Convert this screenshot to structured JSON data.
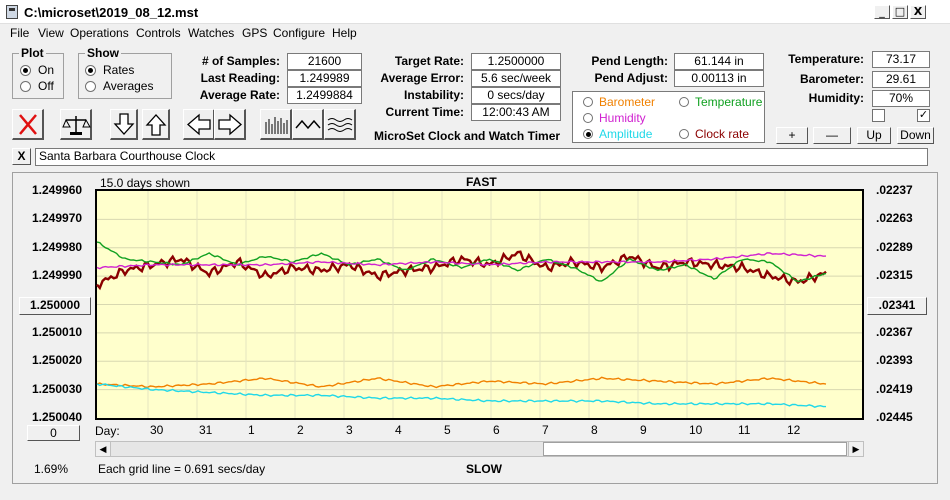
{
  "window": {
    "title": "C:\\microset\\2019_08_12.mst",
    "minimize": "_",
    "maximize": "□",
    "close": "X"
  },
  "menu": [
    "File",
    "View",
    "Operations",
    "Controls",
    "Watches",
    "GPS",
    "Configure",
    "Help"
  ],
  "plot_group": {
    "title": "Plot",
    "options": [
      "On",
      "Off"
    ],
    "selected": "On"
  },
  "show_group": {
    "title": "Show",
    "options": [
      "Rates",
      "Averages"
    ],
    "selected": "Rates"
  },
  "stats_left": [
    {
      "label": "# of Samples:",
      "value": "21600"
    },
    {
      "label": "Last Reading:",
      "value": "1.249989"
    },
    {
      "label": "Average Rate:",
      "value": "1.2499884"
    }
  ],
  "stats_mid": [
    {
      "label": "Target Rate:",
      "value": "1.2500000"
    },
    {
      "label": "Average Error:",
      "value": "5.6 sec/week"
    },
    {
      "label": "Instability:",
      "value": "0 secs/day"
    },
    {
      "label": "Current Time:",
      "value": "12:00:43 AM"
    }
  ],
  "app_caption": "MicroSet Clock and Watch Timer",
  "pend": [
    {
      "label": "Pend Length:",
      "value": "61.144 in"
    },
    {
      "label": "Pend Adjust:",
      "value": "0.00113 in"
    }
  ],
  "env": [
    {
      "label": "Temperature:",
      "value": "73.17"
    },
    {
      "label": "Barometer:",
      "value": "29.61"
    },
    {
      "label": "Humidity:",
      "value": "70%"
    }
  ],
  "env_checks": {
    "left": false,
    "right": true
  },
  "legend": [
    {
      "label": "Barometer",
      "color": "#f08000",
      "selected": false
    },
    {
      "label": "Temperature",
      "color": "#10a020",
      "selected": false
    },
    {
      "label": "Humidity",
      "color": "#d020d0",
      "selected": false
    },
    {
      "label": "Amplitude",
      "color": "#20d8e8",
      "selected": true
    },
    {
      "label": "Clock rate",
      "color": "#8b0000",
      "selected": false
    }
  ],
  "scale_buttons": [
    "+",
    "—",
    "Up",
    "Down"
  ],
  "toolbar_icons": [
    "clear-x-icon",
    "balance-scale-icon",
    "arrow-down-icon",
    "arrow-up-icon",
    "arrow-left-icon",
    "arrow-right-icon",
    "bar-chart-icon",
    "wave-icon",
    "multi-wave-icon"
  ],
  "description_close": "X",
  "description": "Santa Barbara Courthouse Clock",
  "graph": {
    "days_shown": "15.0 days shown",
    "top_label": "FAST",
    "bottom_label": "SLOW",
    "grid_note": "Each grid line = 0.691 secs/day",
    "percent": "1.69%",
    "center_left_button": "1.250000",
    "center_right_button": ".02341",
    "zero_button": "0",
    "day_label": "Day:"
  },
  "chart_data": {
    "type": "line",
    "x_ticks": [
      "30",
      "31",
      "1",
      "2",
      "3",
      "4",
      "5",
      "6",
      "7",
      "8",
      "9",
      "10",
      "11",
      "12"
    ],
    "y_left_ticks": [
      "1.249960",
      "1.249970",
      "1.249980",
      "1.249990",
      "1.250000",
      "1.250010",
      "1.250020",
      "1.250030",
      "1.250040"
    ],
    "y_right_ticks": [
      ".02237",
      ".02263",
      ".02289",
      ".02315",
      ".02341",
      ".02367",
      ".02393",
      ".02419",
      ".02445"
    ],
    "ylim_left": [
      1.24996,
      1.25004
    ],
    "ylim_right": [
      0.02237,
      0.02445
    ],
    "y_axis_inverted": true,
    "background": "#ffffcc",
    "grid": true,
    "series": [
      {
        "name": "Clock rate",
        "color": "#8b0000",
        "points": [
          [
            0,
            1.249993
          ],
          [
            0.5,
            1.249988
          ],
          [
            1,
            1.249986
          ],
          [
            1.5,
            1.249984
          ],
          [
            2,
            1.249989
          ],
          [
            2.5,
            1.249985
          ],
          [
            3,
            1.24999
          ],
          [
            3.5,
            1.249987
          ],
          [
            4,
            1.249988
          ],
          [
            4.5,
            1.249986
          ],
          [
            5,
            1.24999
          ],
          [
            5.5,
            1.249988
          ],
          [
            6,
            1.249987
          ],
          [
            6.5,
            1.249984
          ],
          [
            7,
            1.249986
          ],
          [
            7.5,
            1.249982
          ],
          [
            8,
            1.249987
          ],
          [
            8.5,
            1.249985
          ],
          [
            9,
            1.249987
          ],
          [
            9.5,
            1.249983
          ],
          [
            10,
            1.249987
          ],
          [
            10.5,
            1.249985
          ],
          [
            11,
            1.249986
          ],
          [
            11.5,
            1.249987
          ],
          [
            12,
            1.24999
          ],
          [
            12.5,
            1.249992
          ],
          [
            13,
            1.249989
          ]
        ]
      },
      {
        "name": "Temperature",
        "color": "#10a020",
        "points": [
          [
            0,
            1.249978
          ],
          [
            0.5,
            1.249984
          ],
          [
            1,
            1.249985
          ],
          [
            1.5,
            1.249986
          ],
          [
            2,
            1.249982
          ],
          [
            2.5,
            1.249986
          ],
          [
            3,
            1.249983
          ],
          [
            3.5,
            1.249985
          ],
          [
            4,
            1.249982
          ],
          [
            4.5,
            1.249986
          ],
          [
            5,
            1.249984
          ],
          [
            5.5,
            1.249988
          ],
          [
            6,
            1.249984
          ],
          [
            6.5,
            1.249987
          ],
          [
            7,
            1.249984
          ],
          [
            7.5,
            1.249988
          ],
          [
            8,
            1.249984
          ],
          [
            8.5,
            1.249987
          ],
          [
            9,
            1.249992
          ],
          [
            9.5,
            1.249984
          ],
          [
            10,
            1.249988
          ],
          [
            10.5,
            1.249986
          ],
          [
            11,
            1.249991
          ],
          [
            11.5,
            1.249984
          ],
          [
            12,
            1.249985
          ],
          [
            12.5,
            1.249992
          ],
          [
            13,
            1.249989
          ]
        ]
      },
      {
        "name": "Humidity",
        "color": "#d020d0",
        "points": [
          [
            0,
            1.249987
          ],
          [
            1,
            1.249986
          ],
          [
            2,
            1.249986
          ],
          [
            3,
            1.249986
          ],
          [
            4,
            1.249985
          ],
          [
            5,
            1.249986
          ],
          [
            6,
            1.249985
          ],
          [
            7,
            1.249986
          ],
          [
            8,
            1.249985
          ],
          [
            9,
            1.249985
          ],
          [
            10,
            1.249985
          ],
          [
            11,
            1.249984
          ],
          [
            12,
            1.249982
          ],
          [
            13,
            1.249983
          ]
        ]
      },
      {
        "name": "Barometer",
        "color": "#f08000",
        "points": [
          [
            0,
            1.250028
          ],
          [
            1,
            1.250029
          ],
          [
            2,
            1.250028
          ],
          [
            3,
            1.250026
          ],
          [
            4,
            1.250029
          ],
          [
            5,
            1.250026
          ],
          [
            6,
            1.250029
          ],
          [
            7,
            1.250027
          ],
          [
            8,
            1.250028
          ],
          [
            9,
            1.250026
          ],
          [
            10,
            1.250027
          ],
          [
            11,
            1.250028
          ],
          [
            12,
            1.250026
          ],
          [
            13,
            1.250028
          ]
        ]
      },
      {
        "name": "Amplitude",
        "color": "#20d8e8",
        "points": [
          [
            0,
            1.250028
          ],
          [
            1,
            1.25003
          ],
          [
            2,
            1.250031
          ],
          [
            3,
            1.250032
          ],
          [
            4,
            1.250032
          ],
          [
            5,
            1.250033
          ],
          [
            6,
            1.250033
          ],
          [
            7,
            1.250034
          ],
          [
            8,
            1.250034
          ],
          [
            9,
            1.250034
          ],
          [
            10,
            1.250035
          ],
          [
            11,
            1.250035
          ],
          [
            12,
            1.250035
          ],
          [
            13,
            1.250036
          ]
        ]
      }
    ]
  }
}
